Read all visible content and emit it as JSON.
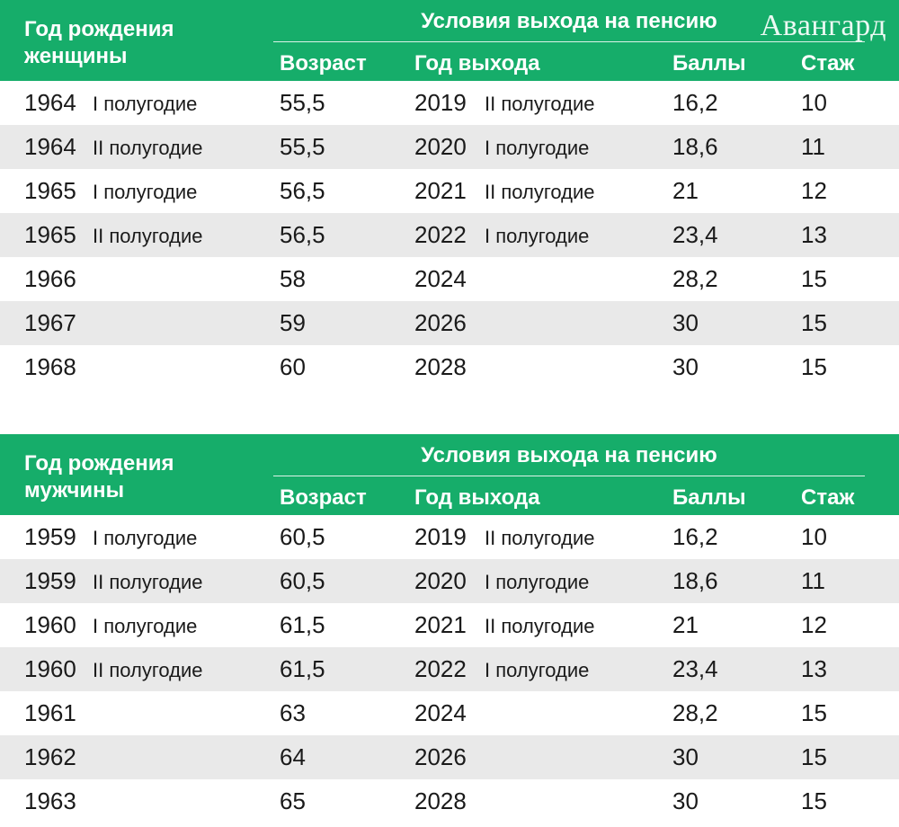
{
  "watermark": "Авангард",
  "tables": [
    {
      "header": {
        "birth_line1": "Год рождения",
        "birth_line2": "женщины",
        "conditions": "Условия выхода на пенсию",
        "col_age": "Возраст",
        "col_year": "Год выхода",
        "col_points": "Баллы",
        "col_experience": "Стаж"
      },
      "rows": [
        {
          "year": "1964",
          "half": "I полугодие",
          "age": "55,5",
          "retire_year": "2019",
          "retire_half": "II полугодие",
          "points": "16,2",
          "experience": "10"
        },
        {
          "year": "1964",
          "half": "II полугодие",
          "age": "55,5",
          "retire_year": "2020",
          "retire_half": "I полугодие",
          "points": "18,6",
          "experience": "11"
        },
        {
          "year": "1965",
          "half": "I полугодие",
          "age": "56,5",
          "retire_year": "2021",
          "retire_half": "II полугодие",
          "points": "21",
          "experience": "12"
        },
        {
          "year": "1965",
          "half": "II полугодие",
          "age": "56,5",
          "retire_year": "2022",
          "retire_half": "I полугодие",
          "points": "23,4",
          "experience": "13"
        },
        {
          "year": "1966",
          "half": "",
          "age": "58",
          "retire_year": "2024",
          "retire_half": "",
          "points": "28,2",
          "experience": "15"
        },
        {
          "year": "1967",
          "half": "",
          "age": "59",
          "retire_year": "2026",
          "retire_half": "",
          "points": "30",
          "experience": "15"
        },
        {
          "year": "1968",
          "half": "",
          "age": "60",
          "retire_year": "2028",
          "retire_half": "",
          "points": "30",
          "experience": "15"
        }
      ]
    },
    {
      "header": {
        "birth_line1": "Год рождения",
        "birth_line2": "мужчины",
        "conditions": "Условия выхода на пенсию",
        "col_age": "Возраст",
        "col_year": "Год выхода",
        "col_points": "Баллы",
        "col_experience": "Стаж"
      },
      "rows": [
        {
          "year": "1959",
          "half": "I полугодие",
          "age": "60,5",
          "retire_year": "2019",
          "retire_half": "II полугодие",
          "points": "16,2",
          "experience": "10"
        },
        {
          "year": "1959",
          "half": "II полугодие",
          "age": "60,5",
          "retire_year": "2020",
          "retire_half": "I полугодие",
          "points": "18,6",
          "experience": "11"
        },
        {
          "year": "1960",
          "half": "I полугодие",
          "age": "61,5",
          "retire_year": "2021",
          "retire_half": "II полугодие",
          "points": "21",
          "experience": "12"
        },
        {
          "year": "1960",
          "half": "II полугодие",
          "age": "61,5",
          "retire_year": "2022",
          "retire_half": "I полугодие",
          "points": "23,4",
          "experience": "13"
        },
        {
          "year": "1961",
          "half": "",
          "age": "63",
          "retire_year": "2024",
          "retire_half": "",
          "points": "28,2",
          "experience": "15"
        },
        {
          "year": "1962",
          "half": "",
          "age": "64",
          "retire_year": "2026",
          "retire_half": "",
          "points": "30",
          "experience": "15"
        },
        {
          "year": "1963",
          "half": "",
          "age": "65",
          "retire_year": "2028",
          "retire_half": "",
          "points": "30",
          "experience": "15"
        }
      ]
    }
  ]
}
